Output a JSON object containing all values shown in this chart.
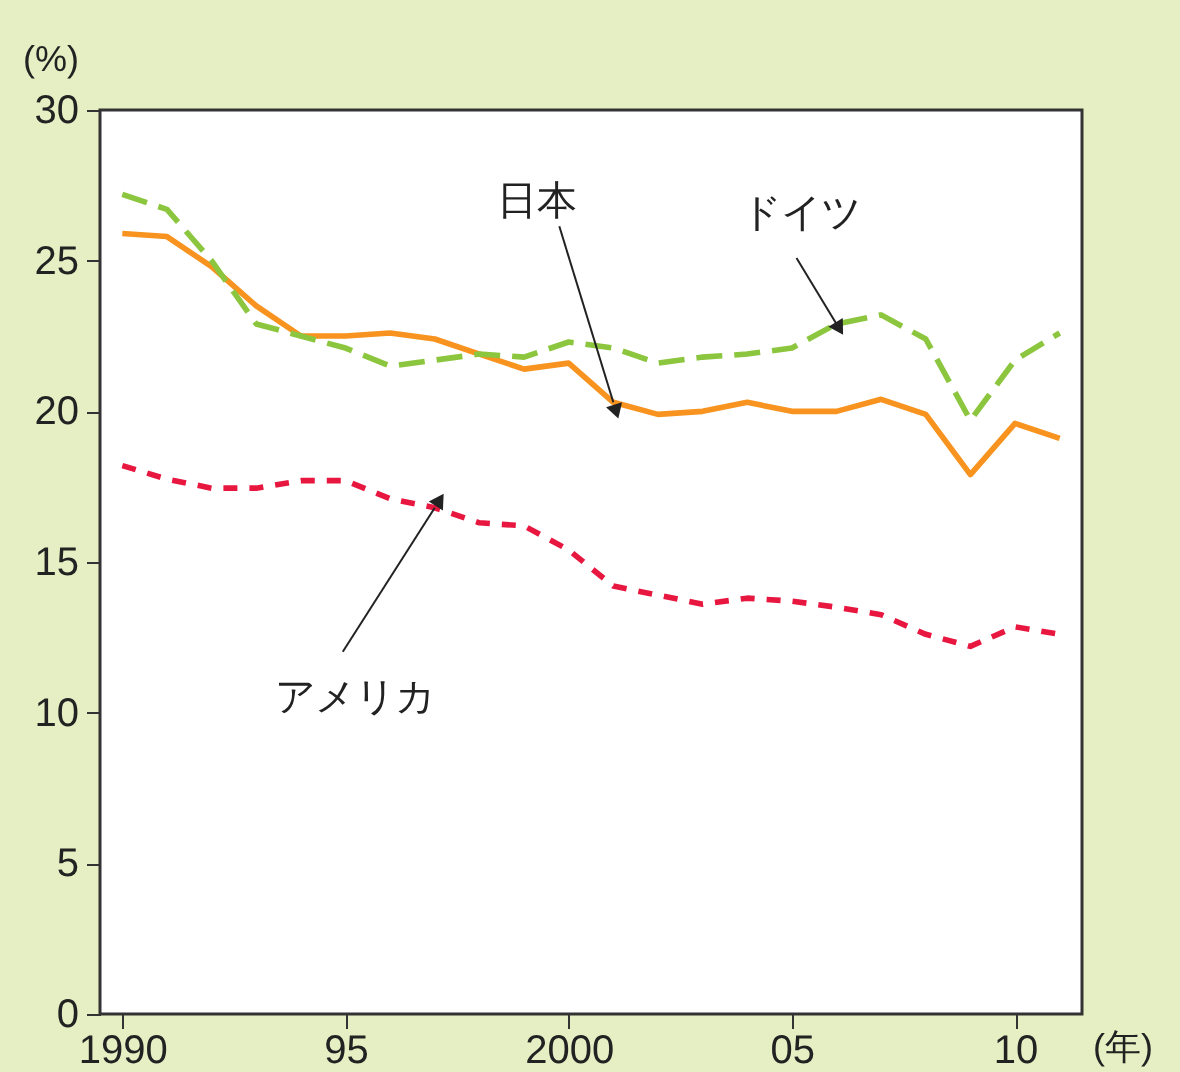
{
  "chart_data": {
    "type": "line",
    "xlabel": "(年)",
    "ylabel": "(%)",
    "x": [
      1990,
      1991,
      1992,
      1993,
      1994,
      1995,
      1996,
      1997,
      1998,
      1999,
      2000,
      2001,
      2002,
      2003,
      2004,
      2005,
      2006,
      2007,
      2008,
      2009,
      2010,
      2011
    ],
    "xlim": [
      1989.5,
      2011.5
    ],
    "xticks": [
      {
        "value": 1990,
        "label": "1990"
      },
      {
        "value": 1995,
        "label": "95"
      },
      {
        "value": 2000,
        "label": "2000"
      },
      {
        "value": 2005,
        "label": "05"
      },
      {
        "value": 2010,
        "label": "10"
      }
    ],
    "ylim": [
      0,
      30
    ],
    "yticks": [
      0,
      5,
      10,
      15,
      20,
      25,
      30
    ],
    "series": [
      {
        "color": "#f7931e",
        "line_style": "solid",
        "values": [
          25.9,
          25.8,
          24.8,
          23.5,
          22.5,
          22.5,
          22.6,
          22.4,
          21.9,
          21.4,
          21.6,
          20.3,
          19.9,
          20.0,
          20.3,
          20.0,
          20.0,
          20.4,
          19.9,
          17.9,
          19.6,
          19.1
        ]
      },
      {
        "color": "#8cc63e",
        "line_style": "dashed",
        "values": [
          27.2,
          26.7,
          25.0,
          22.9,
          22.5,
          22.1,
          21.5,
          21.7,
          21.9,
          21.8,
          22.3,
          22.1,
          21.6,
          21.8,
          21.9,
          22.1,
          22.9,
          23.2,
          22.4,
          19.7,
          21.7,
          22.6
        ]
      },
      {
        "color": "#e8173f",
        "line_style": "dotted",
        "values": [
          18.2,
          17.75,
          17.45,
          17.45,
          17.7,
          17.7,
          17.1,
          16.8,
          16.3,
          16.2,
          15.4,
          14.2,
          13.9,
          13.6,
          13.8,
          13.7,
          13.5,
          13.25,
          12.6,
          12.2,
          12.85,
          12.6
        ]
      }
    ],
    "annotations": [
      {
        "text": "日本",
        "x": 2001,
        "y": 20.3
      },
      {
        "text": "ドイツ",
        "x": 2006,
        "y": 22.9
      },
      {
        "text": "アメリカ",
        "x": 1997,
        "y": 16.8
      }
    ],
    "grid": false,
    "marker": "none"
  }
}
